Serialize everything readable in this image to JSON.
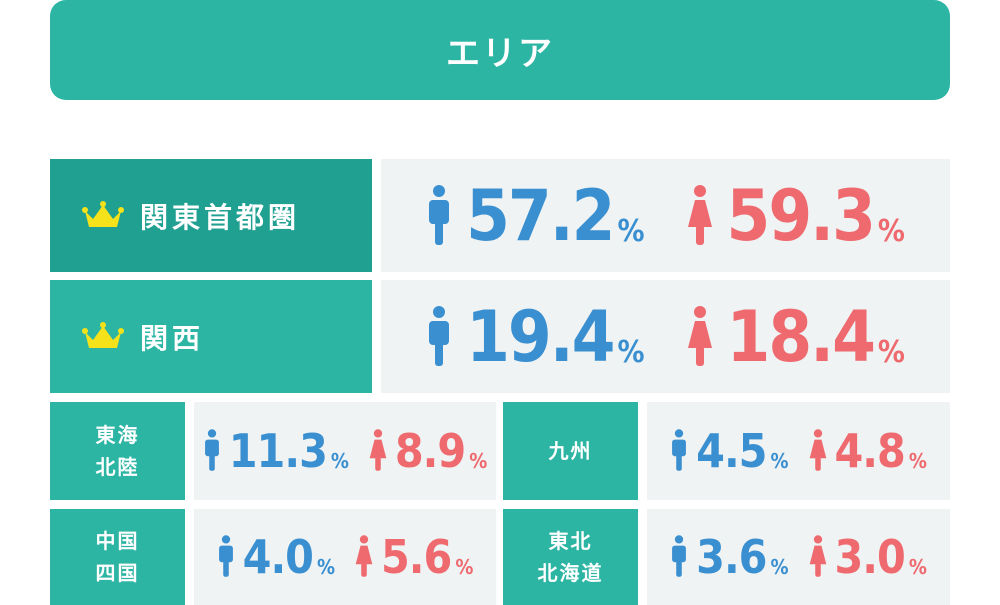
{
  "header": {
    "title": "エリア"
  },
  "regions": [
    {
      "name": "関東首都圏",
      "male": "57.2",
      "female": "59.3",
      "crown": true
    },
    {
      "name": "関西",
      "male": "19.4",
      "female": "18.4",
      "crown": true
    }
  ],
  "small_regions": [
    {
      "line1": "東海",
      "line2": "北陸",
      "male": "11.3",
      "female": "8.9"
    },
    {
      "line1": "九州",
      "line2": "",
      "male": "4.5",
      "female": "4.8"
    },
    {
      "line1": "中国",
      "line2": "四国",
      "male": "4.0",
      "female": "5.6"
    },
    {
      "line1": "東北",
      "line2": "北海道",
      "male": "3.6",
      "female": "3.0"
    }
  ],
  "unit": "%",
  "colors": {
    "teal": "#2db5a4",
    "teal_dark": "#20a090",
    "male": "#3a8fd0",
    "female": "#ee6a6e",
    "panel": "#eff3f4",
    "crown": "#f5e21b"
  },
  "icons": {
    "crown": "crown-icon",
    "male": "male-person-icon",
    "female": "female-person-icon"
  }
}
